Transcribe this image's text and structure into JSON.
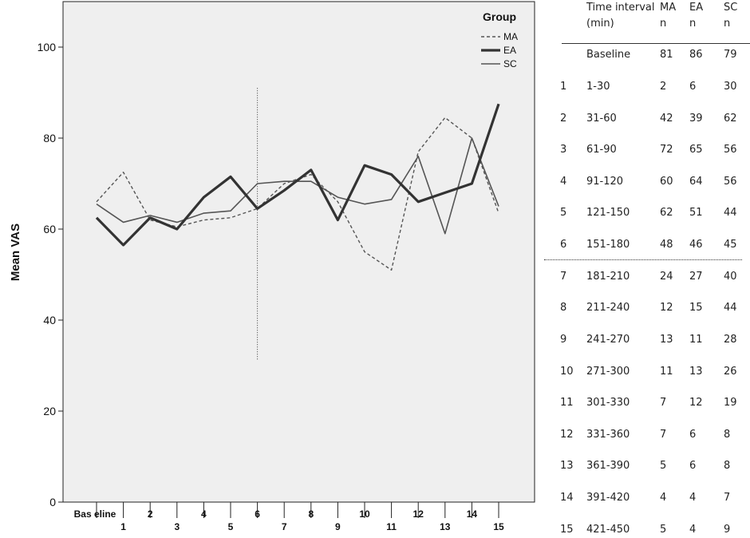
{
  "chart_data": {
    "type": "line",
    "ylabel": "Mean VAS",
    "xlabel": "",
    "ylim": [
      0,
      110
    ],
    "yticks": [
      0,
      20,
      40,
      60,
      80,
      100
    ],
    "categories": [
      "Baseline",
      "1",
      "2",
      "3",
      "4",
      "5",
      "6",
      "7",
      "8",
      "9",
      "10",
      "11",
      "12",
      "13",
      "14",
      "15"
    ],
    "category_labels": [
      "Bas eline",
      "1",
      "2",
      "3",
      "4",
      "5",
      "6",
      "7",
      "8",
      "9",
      "10",
      "11",
      "12",
      "13",
      "14",
      "15"
    ],
    "legend": {
      "title": "Group",
      "placement": "top-right"
    },
    "series": [
      {
        "name": "MA",
        "style": "dashed",
        "color": "#555555",
        "values": [
          66,
          72.5,
          62,
          60.5,
          62,
          62.5,
          64.5,
          70,
          72,
          66,
          55,
          51,
          77,
          84.5,
          80,
          63.5
        ]
      },
      {
        "name": "EA",
        "style": "thick",
        "color": "#333333",
        "values": [
          62.5,
          56.5,
          62.5,
          60,
          67,
          71.5,
          64.5,
          68.5,
          73,
          62,
          74,
          72,
          66,
          68,
          70,
          87.5
        ]
      },
      {
        "name": "SC",
        "style": "thin",
        "color": "#555555",
        "values": [
          65.5,
          61.5,
          63,
          61.5,
          63.5,
          64,
          70,
          70.5,
          70.5,
          67,
          65.5,
          66.5,
          76,
          59,
          80,
          65
        ]
      }
    ],
    "reference_line": {
      "x": "6",
      "y_range": [
        31,
        91
      ]
    },
    "plot_background": "#efefef"
  },
  "table": {
    "headers": {
      "interval": "Time interval",
      "interval_unit": "(min)",
      "ma": "MA",
      "ea": "EA",
      "sc": "SC",
      "n_ma": "n",
      "n_ea": "n",
      "n_sc": "n"
    },
    "rows": [
      {
        "idx": "",
        "interval": "Baseline",
        "ma": "81",
        "ea": "86",
        "sc": "79"
      },
      {
        "idx": "1",
        "interval": "1-30",
        "ma": "2",
        "ea": "6",
        "sc": "30"
      },
      {
        "idx": "2",
        "interval": "31-60",
        "ma": "42",
        "ea": "39",
        "sc": "62"
      },
      {
        "idx": "3",
        "interval": "61-90",
        "ma": "72",
        "ea": "65",
        "sc": "56"
      },
      {
        "idx": "4",
        "interval": "91-120",
        "ma": "60",
        "ea": "64",
        "sc": "56"
      },
      {
        "idx": "5",
        "interval": "121-150",
        "ma": "62",
        "ea": "51",
        "sc": "44"
      },
      {
        "idx": "6",
        "interval": "151-180",
        "ma": "48",
        "ea": "46",
        "sc": "45"
      },
      {
        "idx": "7",
        "interval": "181-210",
        "ma": "24",
        "ea": "27",
        "sc": "40"
      },
      {
        "idx": "8",
        "interval": "211-240",
        "ma": "12",
        "ea": "15",
        "sc": "44"
      },
      {
        "idx": "9",
        "interval": "241-270",
        "ma": "13",
        "ea": "11",
        "sc": "28"
      },
      {
        "idx": "10",
        "interval": "271-300",
        "ma": "11",
        "ea": "13",
        "sc": "26"
      },
      {
        "idx": "11",
        "interval": "301-330",
        "ma": "7",
        "ea": "12",
        "sc": "19"
      },
      {
        "idx": "12",
        "interval": "331-360",
        "ma": "7",
        "ea": "6",
        "sc": "8"
      },
      {
        "idx": "13",
        "interval": "361-390",
        "ma": "5",
        "ea": "6",
        "sc": "8"
      },
      {
        "idx": "14",
        "interval": "391-420",
        "ma": "4",
        "ea": "4",
        "sc": "7"
      },
      {
        "idx": "15",
        "interval": "421-450",
        "ma": "5",
        "ea": "4",
        "sc": "9"
      }
    ]
  }
}
